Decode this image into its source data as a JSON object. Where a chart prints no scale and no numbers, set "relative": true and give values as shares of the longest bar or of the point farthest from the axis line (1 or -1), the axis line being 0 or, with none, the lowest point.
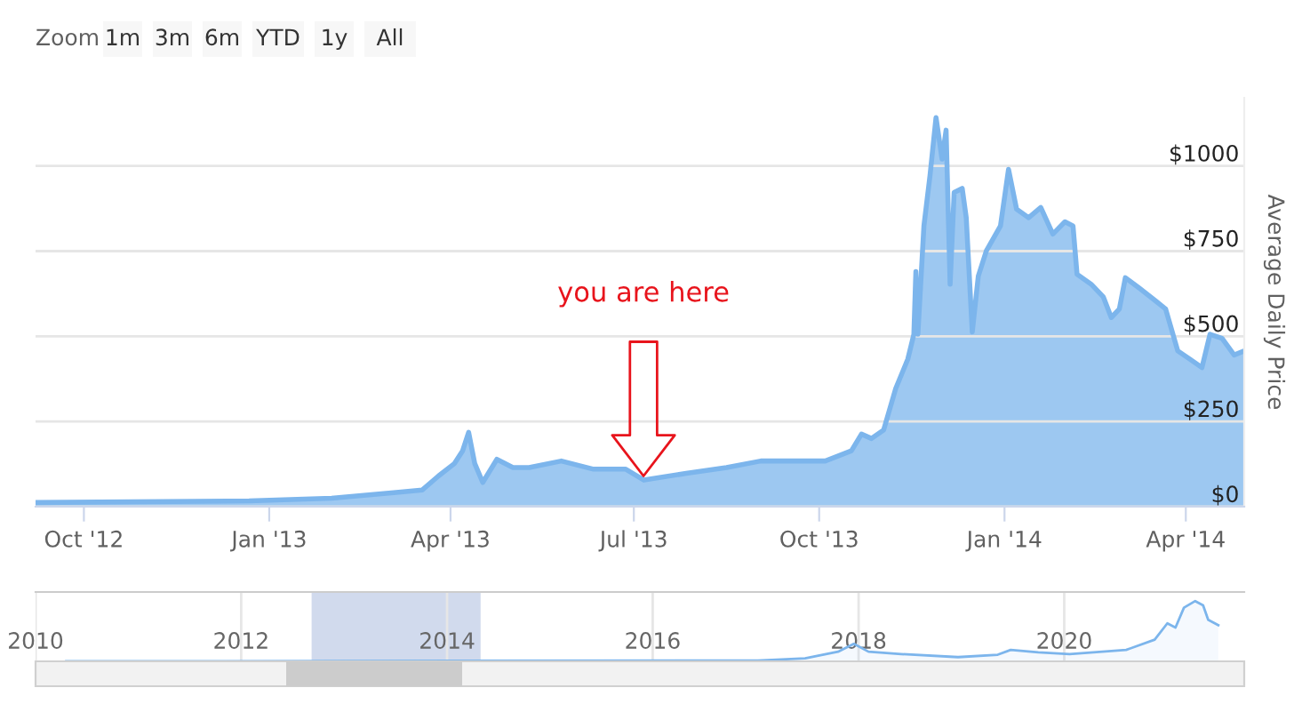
{
  "chart_data": [
    {
      "type": "area",
      "ylabel": "Average Daily Price",
      "grid": "y",
      "annotations": [
        "Zoom",
        "1m",
        "3m",
        "6m",
        "YTD",
        "1y",
        "All",
        "you are here"
      ],
      "xlim": [
        "2012-09-07",
        "2014-04-30"
      ],
      "xticks": [
        {
          "value": "2012-10-01",
          "label": "Oct '12"
        },
        {
          "value": "2013-01-01",
          "label": "Jan '13"
        },
        {
          "value": "2013-04-01",
          "label": "Apr '13"
        },
        {
          "value": "2013-07-01",
          "label": "Jul '13"
        },
        {
          "value": "2013-10-01",
          "label": "Oct '13"
        },
        {
          "value": "2014-01-01",
          "label": "Jan '14"
        },
        {
          "value": "2014-04-01",
          "label": "Apr '14"
        }
      ],
      "ylim": [
        0,
        1200
      ],
      "yticks": [
        {
          "value": 0,
          "label": "$0"
        },
        {
          "value": 250,
          "label": "$250"
        },
        {
          "value": 500,
          "label": "$500"
        },
        {
          "value": 750,
          "label": "$750"
        },
        {
          "value": 1000,
          "label": "$1000"
        }
      ],
      "series": [
        {
          "color": "#7cb5ec",
          "x": [
            "2012-09-07",
            "2012-12-22",
            "2013-02-01",
            "2013-03-05",
            "2013-03-18",
            "2013-03-26",
            "2013-04-03",
            "2013-04-07",
            "2013-04-10",
            "2013-04-13",
            "2013-04-17",
            "2013-04-24",
            "2013-05-02",
            "2013-05-10",
            "2013-05-26",
            "2013-06-11",
            "2013-06-27",
            "2013-07-06",
            "2013-07-27",
            "2013-08-16",
            "2013-09-02",
            "2013-09-18",
            "2013-10-04",
            "2013-10-17",
            "2013-10-22",
            "2013-10-27",
            "2013-11-02",
            "2013-11-08",
            "2013-11-14",
            "2013-11-17",
            "2013-11-18",
            "2013-11-19",
            "2013-11-22",
            "2013-11-25",
            "2013-11-28",
            "2013-12-01",
            "2013-12-03",
            "2013-12-05",
            "2013-12-07",
            "2013-12-11",
            "2013-12-13",
            "2013-12-16",
            "2013-12-19",
            "2013-12-23",
            "2013-12-30",
            "2014-01-03",
            "2014-01-07",
            "2014-01-13",
            "2014-01-19",
            "2014-01-25",
            "2014-01-31",
            "2014-02-04",
            "2014-02-06",
            "2014-02-13",
            "2014-02-19",
            "2014-02-23",
            "2014-02-27",
            "2014-03-02",
            "2014-03-09",
            "2014-03-17",
            "2014-03-22",
            "2014-03-28",
            "2014-04-03",
            "2014-04-09",
            "2014-04-13",
            "2014-04-19",
            "2014-04-25",
            "2014-04-30"
          ],
          "values": [
            12,
            17,
            25,
            42,
            49,
            90,
            127,
            164,
            218,
            127,
            71,
            139,
            115,
            115,
            134,
            110,
            110,
            78,
            98,
            115,
            134,
            134,
            134,
            164,
            213,
            200,
            225,
            347,
            433,
            506,
            690,
            506,
            824,
            971,
            1142,
            1020,
            1105,
            653,
            922,
            934,
            848,
            513,
            677,
            751,
            824,
            990,
            873,
            848,
            878,
            800,
            836,
            824,
            682,
            653,
            616,
            555,
            580,
            672,
            641,
            604,
            580,
            457,
            433,
            408,
            506,
            494,
            445,
            457
          ]
        }
      ]
    },
    {
      "type": "area",
      "relative": true,
      "grid": "x",
      "tick_labels": "x",
      "xlim": [
        "2010-01-01",
        "2021-10-01"
      ],
      "xticks": [
        {
          "value": "2010-01-01",
          "label": "2010"
        },
        {
          "value": "2012-01-01",
          "label": "2012"
        },
        {
          "value": "2014-01-01",
          "label": "2014"
        },
        {
          "value": "2016-01-01",
          "label": "2016"
        },
        {
          "value": "2018-01-01",
          "label": "2018"
        },
        {
          "value": "2020-01-01",
          "label": "2020"
        }
      ],
      "bands": [
        {
          "axis": "x",
          "from": "2012-09-07",
          "to": "2014-04-30",
          "color": "#ccd6eb"
        }
      ],
      "series": [
        {
          "color": "#7cb5ec",
          "x": [
            "2010-04-20",
            "2017-01-08",
            "2017-06-25",
            "2017-10-20",
            "2017-12-15",
            "2018-02-05",
            "2018-06-01",
            "2018-12-20",
            "2019-05-10",
            "2019-06-25",
            "2019-10-01",
            "2020-01-20",
            "2020-08-08",
            "2020-11-17",
            "2021-01-01",
            "2021-01-30",
            "2021-03-01",
            "2021-04-10",
            "2021-05-08",
            "2021-05-26",
            "2021-07-01"
          ],
          "values": [
            0,
            0.013,
            0.05,
            0.16,
            0.29,
            0.16,
            0.12,
            0.07,
            0.11,
            0.19,
            0.15,
            0.12,
            0.19,
            0.36,
            0.63,
            0.56,
            0.89,
            1,
            0.93,
            0.69,
            0.6
          ]
        }
      ]
    }
  ]
}
